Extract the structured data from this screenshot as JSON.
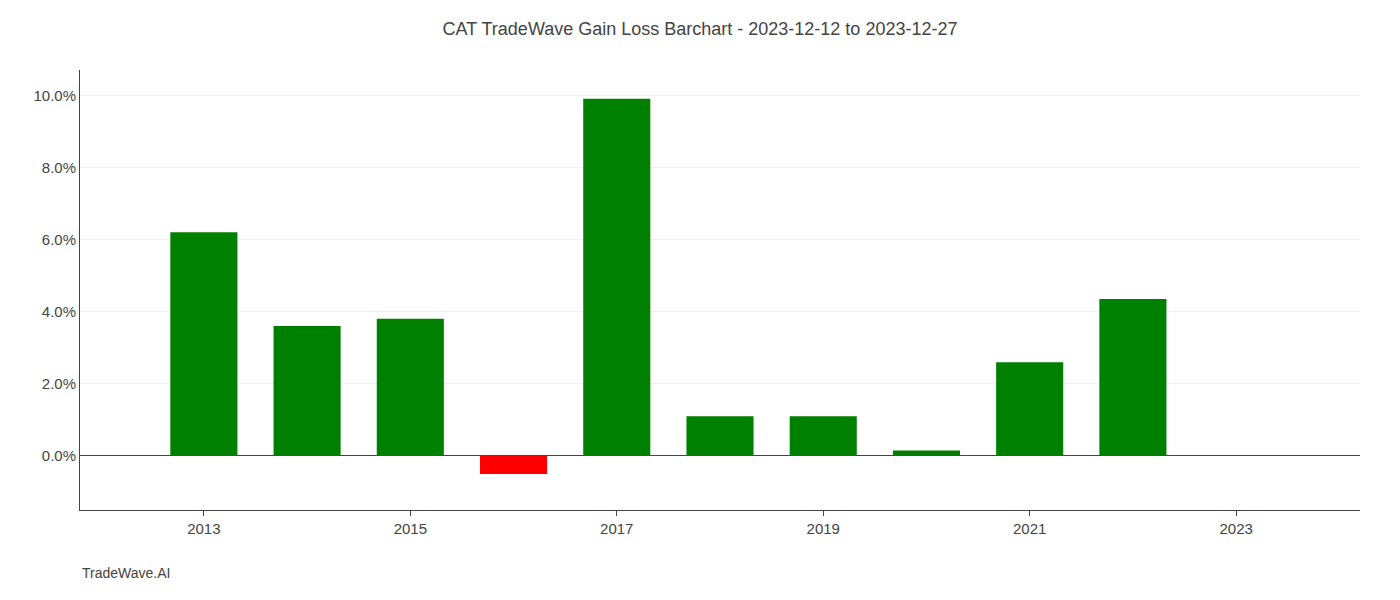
{
  "chart_data": {
    "type": "bar",
    "title": "CAT TradeWave Gain Loss Barchart - 2023-12-12 to 2023-12-27",
    "annotations": [
      "TradeWave.AI"
    ],
    "x": [
      2013,
      2014,
      2015,
      2016,
      2017,
      2018,
      2019,
      2020,
      2021,
      2022
    ],
    "values": [
      0.062,
      0.036,
      0.038,
      -0.005,
      0.099,
      0.011,
      0.011,
      0.0015,
      0.026,
      0.0435
    ],
    "colors": [
      "#008000",
      "#008000",
      "#008000",
      "#ff0000",
      "#008000",
      "#008000",
      "#008000",
      "#008000",
      "#008000",
      "#008000"
    ],
    "xlim": [
      2011.8,
      2024.2
    ],
    "xticks": [
      2013,
      2015,
      2017,
      2019,
      2021,
      2023
    ],
    "ylim": [
      -0.015,
      0.107
    ],
    "yticks": [
      {
        "value": 0.0,
        "label": "0.0%"
      },
      {
        "value": 0.02,
        "label": "2.0%"
      },
      {
        "value": 0.04,
        "label": "4.0%"
      },
      {
        "value": 0.06,
        "label": "6.0%"
      },
      {
        "value": 0.08,
        "label": "8.0%"
      },
      {
        "value": 0.1,
        "label": "10.0%"
      }
    ],
    "grid": true
  }
}
